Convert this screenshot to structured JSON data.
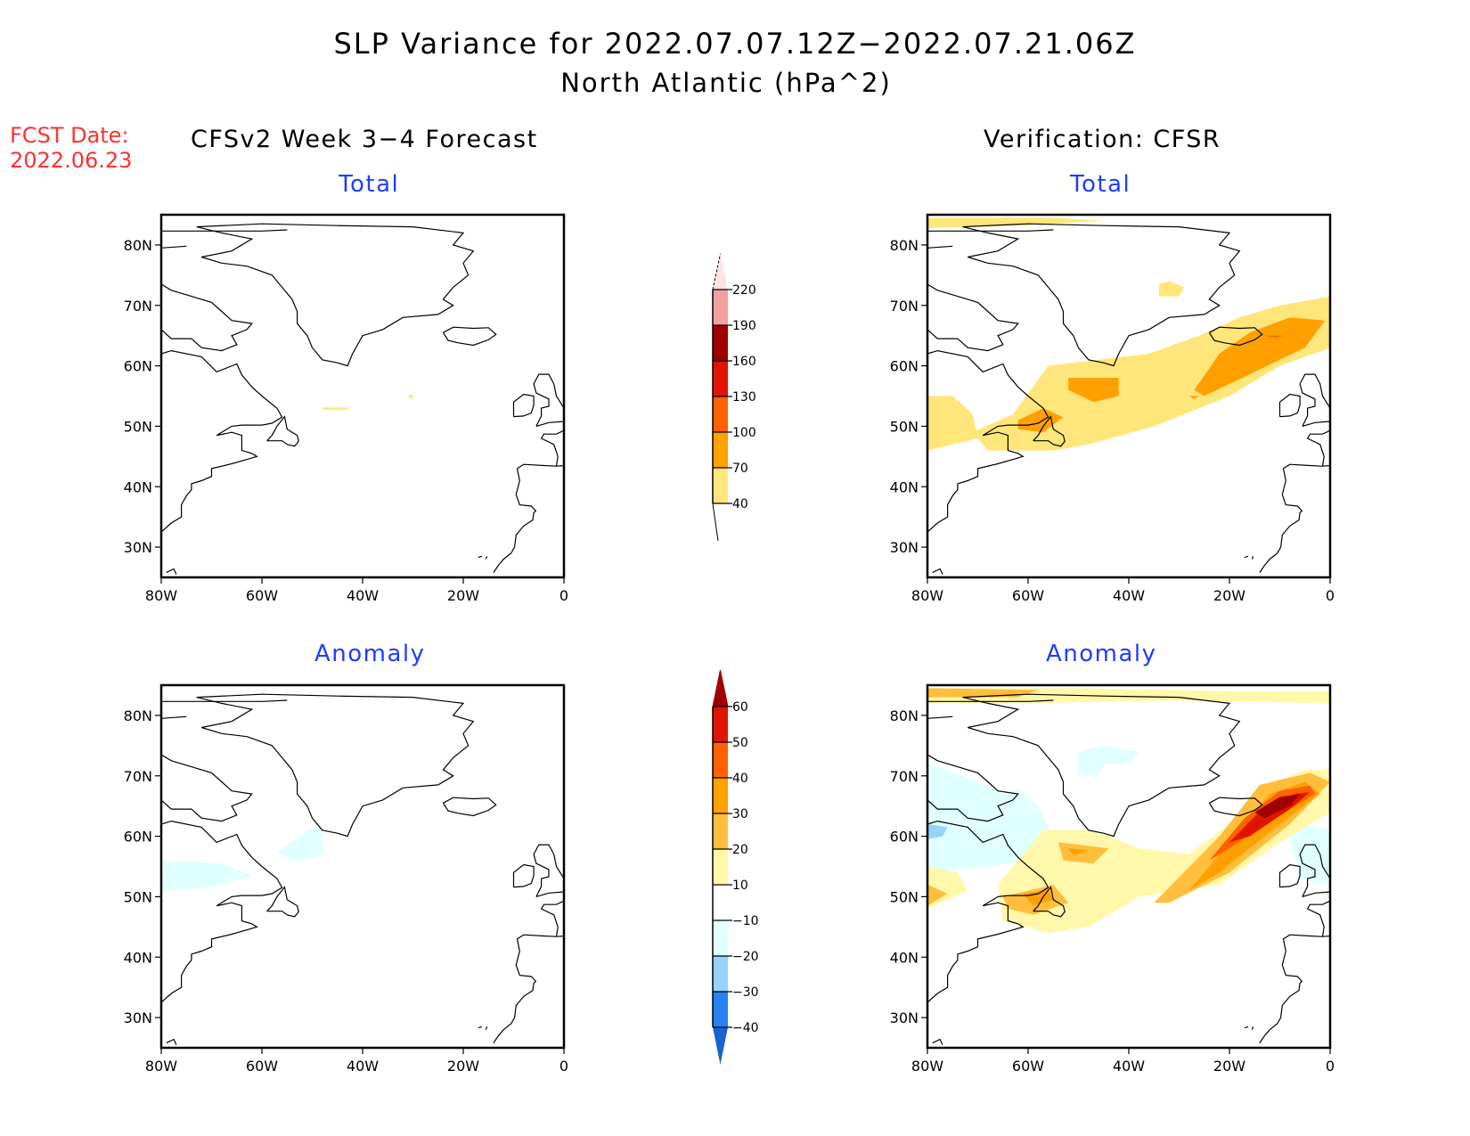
{
  "title": "SLP Variance for 2022.07.07.12Z−2022.07.21.06Z",
  "subtitle": "North Atlantic (hPa^2)",
  "fcst_label": "FCST Date:",
  "fcst_date": "2022.06.23",
  "left_column_title": "CFSv2 Week 3−4 Forecast",
  "right_column_title": "Verification: CFSR",
  "panel_titles": {
    "total": "Total",
    "anomaly": "Anomaly"
  },
  "colors": {
    "panel_title": "#1f3dff",
    "fcst": "#ff3030"
  },
  "chart_data": [
    {
      "type": "heatmap",
      "title": "Total",
      "source": "CFSv2 Week 3-4 Forecast",
      "xlim": [
        -80,
        0
      ],
      "ylim": [
        25,
        85
      ],
      "xticks": [
        "80W",
        "60W",
        "40W",
        "20W",
        "0"
      ],
      "yticks": [
        "30N",
        "40N",
        "50N",
        "60N",
        "70N",
        "80N"
      ],
      "regions": [
        {
          "level": 40,
          "lon": [
            -48,
            -42
          ],
          "lat": [
            52.5,
            53
          ]
        },
        {
          "level": 40,
          "lon": [
            -31,
            -30
          ],
          "lat": [
            54.5,
            55.2
          ]
        }
      ]
    },
    {
      "type": "heatmap",
      "title": "Total",
      "source": "Verification: CFSR",
      "xlim": [
        -80,
        0
      ],
      "ylim": [
        25,
        85
      ],
      "xticks": [
        "80W",
        "60W",
        "40W",
        "20W",
        "0"
      ],
      "yticks": [
        "30N",
        "40N",
        "50N",
        "60N",
        "70N",
        "80N"
      ],
      "regions": [
        {
          "level": 40,
          "description": "band 45N-70N from 80W to 0"
        },
        {
          "level": 70,
          "description": "Iceland-to-UK maximum, Labrador Sea, Newfoundland"
        },
        {
          "level": 100,
          "description": "small cell east of Iceland"
        }
      ]
    },
    {
      "type": "heatmap",
      "title": "Anomaly",
      "source": "CFSv2 Week 3-4 Forecast",
      "xlim": [
        -80,
        0
      ],
      "ylim": [
        25,
        85
      ],
      "xticks": [
        "80W",
        "60W",
        "40W",
        "20W",
        "0"
      ],
      "yticks": [
        "30N",
        "40N",
        "50N",
        "60N",
        "70N",
        "80N"
      ],
      "regions": [
        {
          "level": -10,
          "description": "Labrador / Hudson Bay and south Greenland tip"
        }
      ]
    },
    {
      "type": "heatmap",
      "title": "Anomaly",
      "source": "Verification: CFSR",
      "xlim": [
        -80,
        0
      ],
      "ylim": [
        25,
        85
      ],
      "xticks": [
        "80W",
        "60W",
        "40W",
        "20W",
        "0"
      ],
      "yticks": [
        "30N",
        "40N",
        "50N",
        "60N",
        "70N",
        "80N"
      ],
      "regions": [
        {
          "level": 60,
          "description": "maximum east of Iceland"
        },
        {
          "level": 30,
          "description": "Labrador Sea, Newfoundland"
        },
        {
          "level": -20,
          "description": "Baffin / Hudson"
        }
      ]
    }
  ],
  "colorbars": [
    {
      "name": "total",
      "labels": [
        "220",
        "190",
        "160",
        "130",
        "100",
        "70",
        "40"
      ],
      "colors": [
        "#fde3e3",
        "#f4a0a0",
        "#a00000",
        "#e01500",
        "#ff6000",
        "#ffa000",
        "#ffe67a"
      ]
    },
    {
      "name": "anomaly",
      "labels": [
        "60",
        "50",
        "40",
        "30",
        "20",
        "10",
        "−10",
        "−20",
        "−30",
        "−40"
      ],
      "colors": [
        "#a00000",
        "#e01500",
        "#ff6000",
        "#ffa000",
        "#ffbe3c",
        "#fff8aa",
        "#ffffff",
        "#e0ffff",
        "#96d2fa",
        "#2882f0",
        "#1464d2"
      ]
    }
  ]
}
